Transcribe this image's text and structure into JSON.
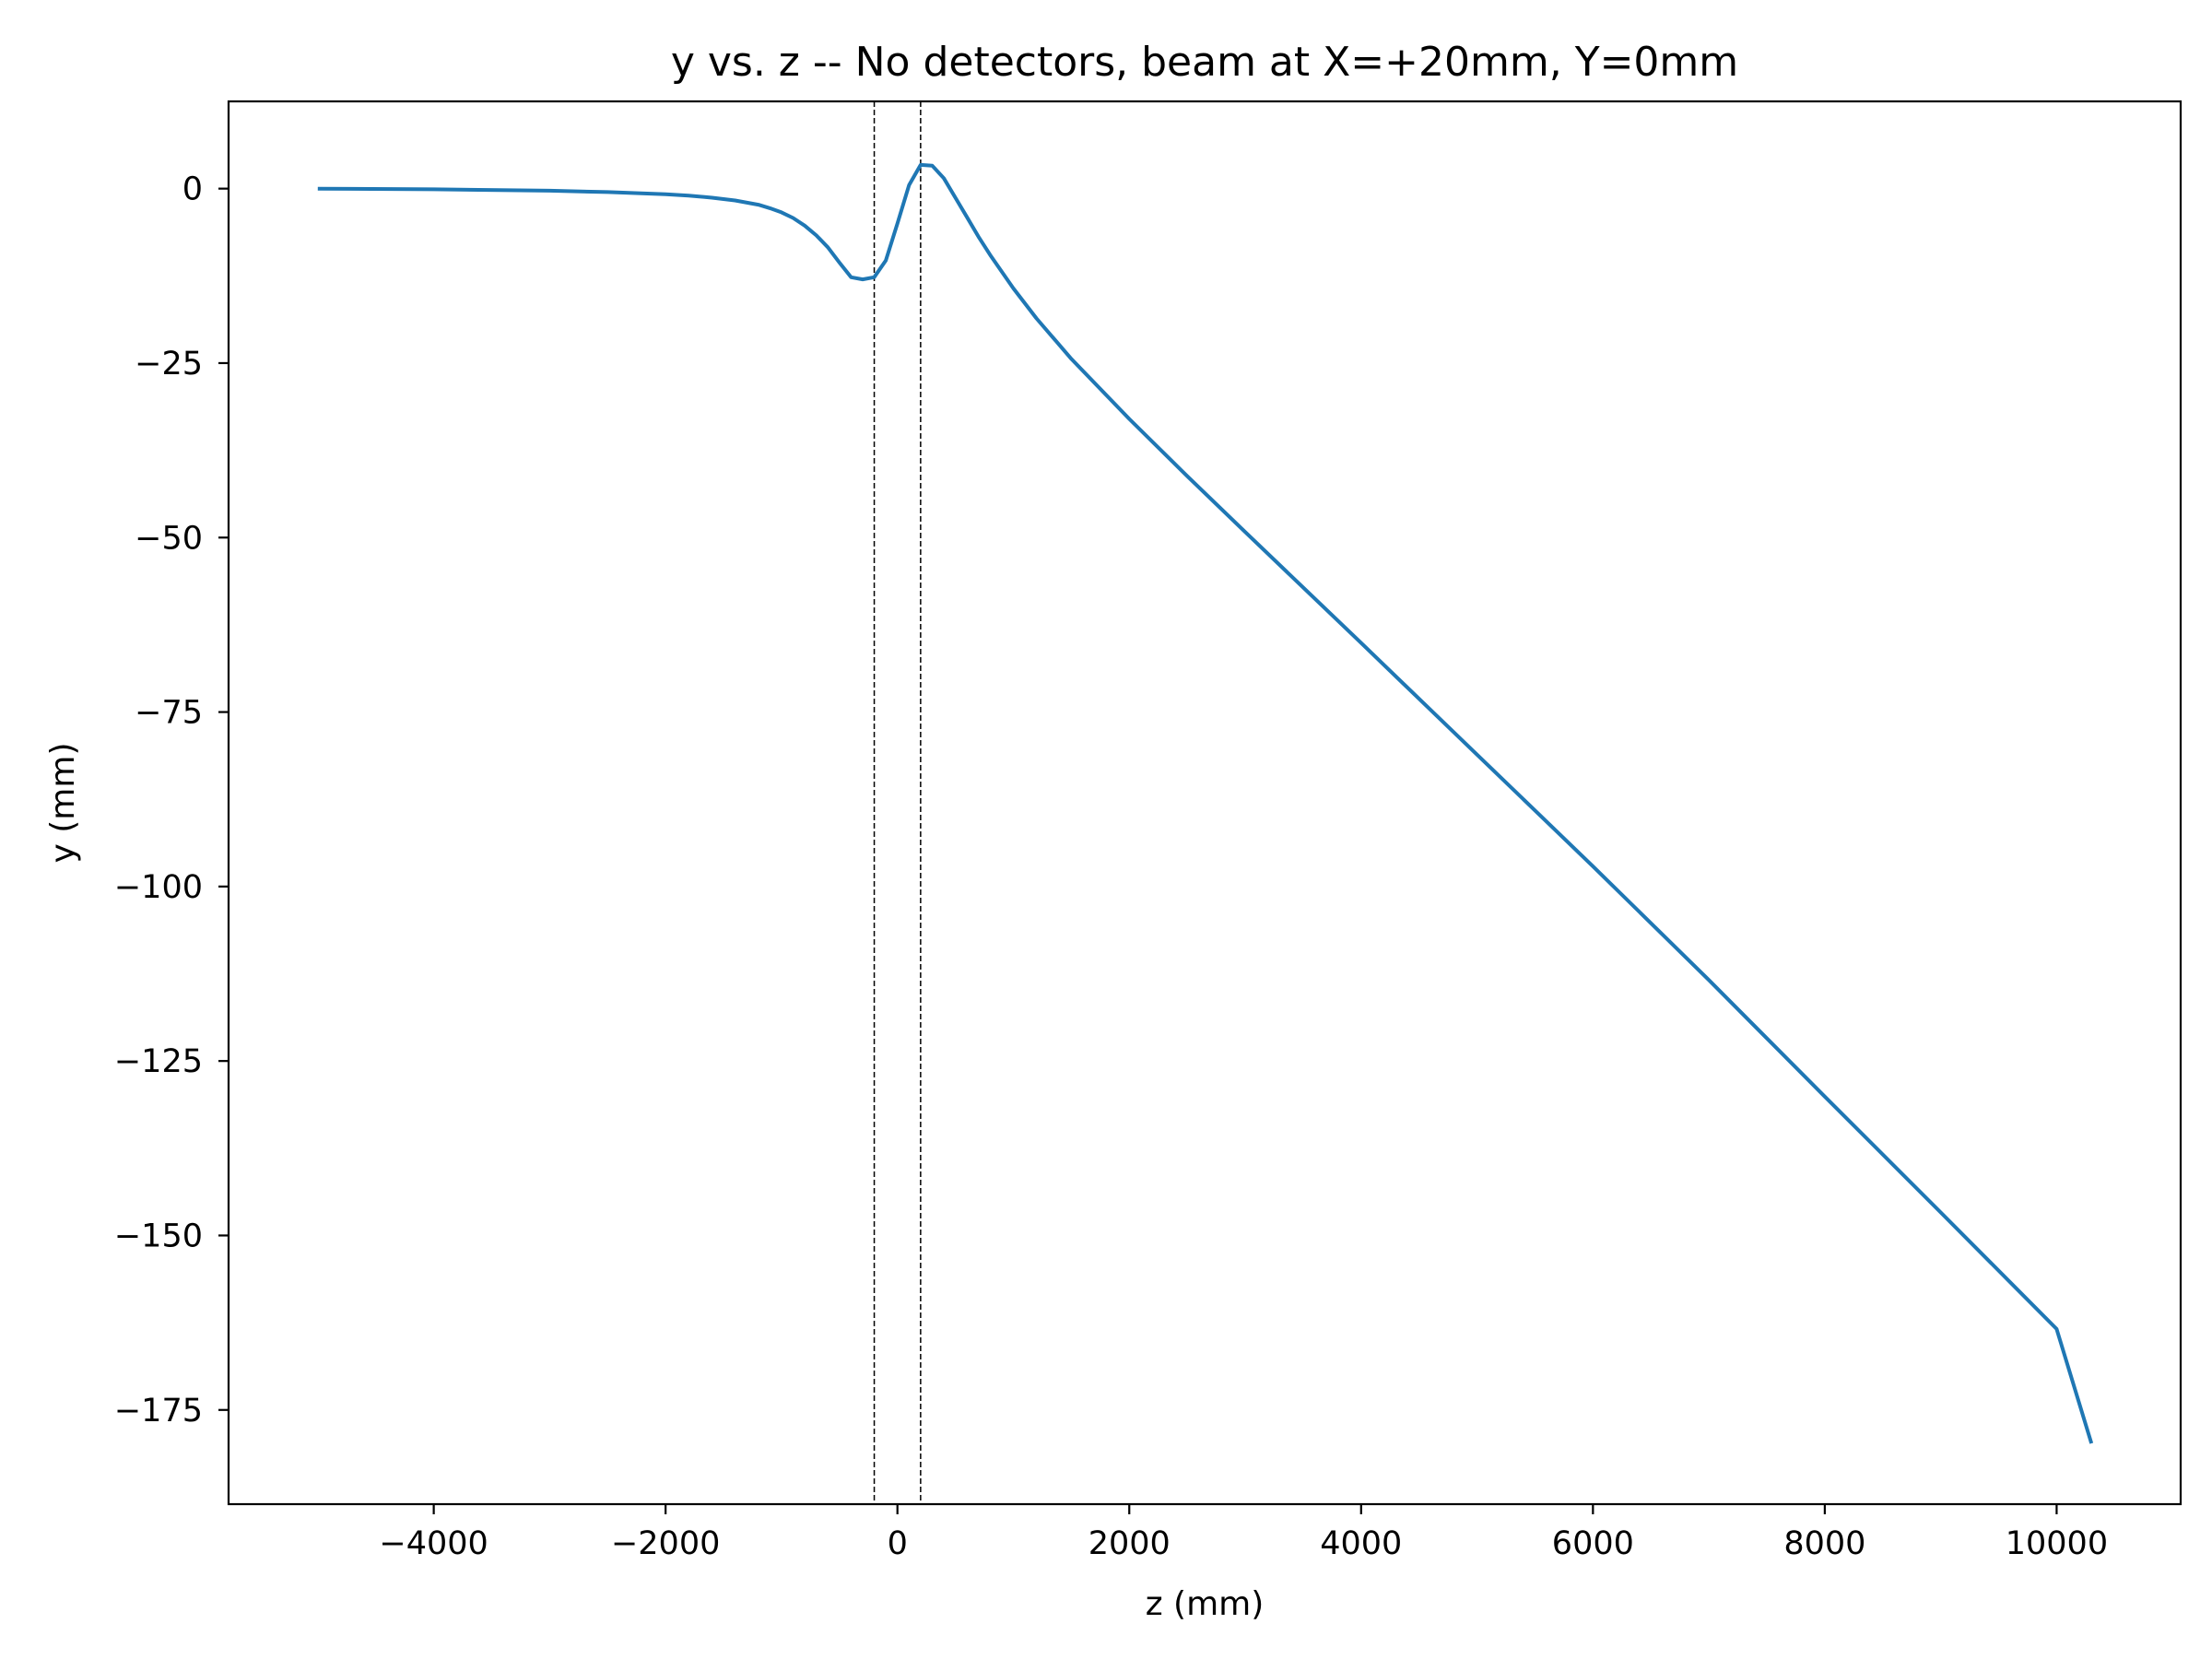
{
  "chart_data": {
    "type": "line",
    "title": "y vs. z -- No detectors, beam at X=+20mm, Y=0mm",
    "xlabel": "z (mm)",
    "ylabel": "y (mm)",
    "xlim": [
      -5770,
      11070
    ],
    "ylim": [
      -188.5,
      12.5
    ],
    "grid": false,
    "legend": "none",
    "x_ticks": [
      {
        "value": -4000,
        "label": "−4000"
      },
      {
        "value": -2000,
        "label": "−2000"
      },
      {
        "value": 0,
        "label": "0"
      },
      {
        "value": 2000,
        "label": "2000"
      },
      {
        "value": 4000,
        "label": "4000"
      },
      {
        "value": 6000,
        "label": "6000"
      },
      {
        "value": 8000,
        "label": "8000"
      },
      {
        "value": 10000,
        "label": "10000"
      }
    ],
    "y_ticks": [
      {
        "value": 0,
        "label": "0"
      },
      {
        "value": -25,
        "label": "−25"
      },
      {
        "value": -50,
        "label": "−50"
      },
      {
        "value": -75,
        "label": "−75"
      },
      {
        "value": -100,
        "label": "−100"
      },
      {
        "value": -125,
        "label": "−125"
      },
      {
        "value": -150,
        "label": "−150"
      },
      {
        "value": -175,
        "label": "−175"
      }
    ],
    "vlines": [
      {
        "x": -200,
        "style": "dashed",
        "color": "#000000"
      },
      {
        "x": 200,
        "style": "dashed",
        "color": "#000000"
      }
    ],
    "series": [
      {
        "color": "#1f77b4",
        "x": [
          -5000,
          -4000,
          -3000,
          -2500,
          -2000,
          -1800,
          -1600,
          -1400,
          -1200,
          -1100,
          -1000,
          -900,
          -800,
          -700,
          -600,
          -500,
          -400,
          -300,
          -200,
          -100,
          0,
          100,
          200,
          300,
          400,
          500,
          600,
          700,
          800,
          1000,
          1200,
          1500,
          2000,
          2500,
          3000,
          4000,
          5000,
          6000,
          7000,
          8000,
          9000,
          10000,
          10300
        ],
        "y": [
          0.0,
          -0.1,
          -0.3,
          -0.5,
          -0.8,
          -1.0,
          -1.3,
          -1.7,
          -2.3,
          -2.8,
          -3.4,
          -4.2,
          -5.3,
          -6.7,
          -8.4,
          -10.6,
          -12.7,
          -13.0,
          -12.7,
          -10.3,
          -5.0,
          0.5,
          3.4,
          3.3,
          1.5,
          -1.3,
          -4.1,
          -6.9,
          -9.5,
          -14.3,
          -18.6,
          -24.4,
          -33.0,
          -41.2,
          -49.2,
          -65.1,
          -81.1,
          -97.1,
          -113.4,
          -130.1,
          -146.7,
          -163.4,
          -179.8
        ]
      }
    ]
  }
}
